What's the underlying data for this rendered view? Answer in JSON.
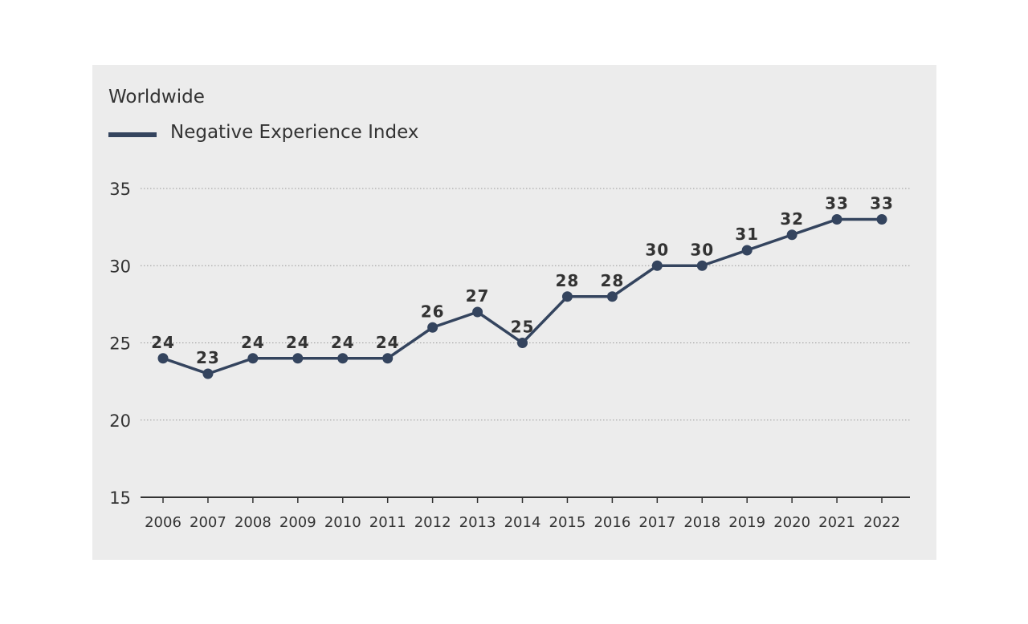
{
  "chart_data": {
    "type": "line",
    "title": "Worldwide",
    "xlabel": "",
    "ylabel": "",
    "ylim": [
      15,
      35
    ],
    "yticks": [
      15,
      20,
      25,
      30,
      35
    ],
    "grid": "horizontal dotted",
    "legend_position": "top-left",
    "x": [
      "2006",
      "2007",
      "2008",
      "2009",
      "2010",
      "2011",
      "2012",
      "2013",
      "2014",
      "2015",
      "2016",
      "2017",
      "2018",
      "2019",
      "2020",
      "2021",
      "2022"
    ],
    "series": [
      {
        "name": "Negative Experience Index",
        "color": "#34445e",
        "values": [
          24,
          23,
          24,
          24,
          24,
          24,
          26,
          27,
          25,
          28,
          28,
          30,
          30,
          31,
          32,
          33,
          33
        ]
      }
    ]
  }
}
